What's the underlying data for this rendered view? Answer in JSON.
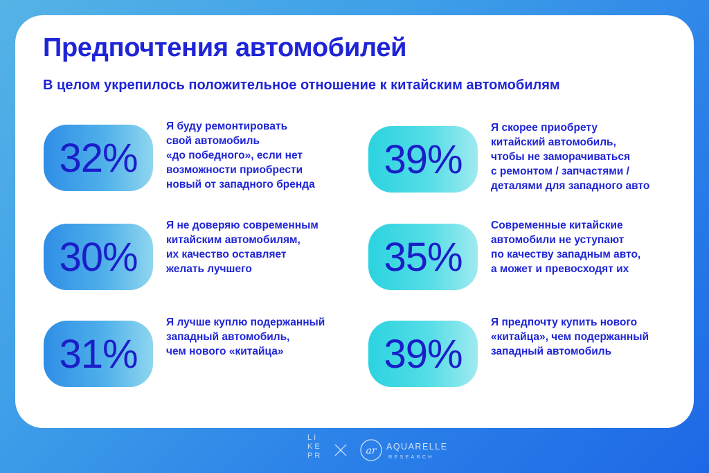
{
  "title": "Предпочтения автомобилей",
  "subtitle": "В целом укрепилось положительное отношение к китайским автомобилям",
  "stats": [
    {
      "value": "32%",
      "text": "Я буду ремонтировать\nсвой автомобиль\n«до победного», если нет\nвозможности приобрести\nновый от западного бренда"
    },
    {
      "value": "30%",
      "text": "Я не доверяю современным\nкитайским автомобилям,\nих качество оставляет\nжелать лучшего"
    },
    {
      "value": "31%",
      "text": "Я лучше куплю подержанный\nзападный автомобиль,\nчем нового «китайца»"
    },
    {
      "value": "39%",
      "text": "Я скорее приобрету\nкитайский автомобиль,\nчтобы не заморачиваться\nс ремонтом / запчастями /\nдеталями для западного авто"
    },
    {
      "value": "35%",
      "text": "Современные китайские\nавтомобили не уступают\nпо качеству западным авто,\nа может и превосходят их"
    },
    {
      "value": "39%",
      "text": "Я предпочту купить нового\n«китайца», чем подержанный\nзападный автомобиль"
    }
  ],
  "footer": {
    "likepr": "LI\nKE\nPR",
    "partner_name": "AQUARELLE",
    "partner_sub": "RESEARCH",
    "partner_logo_text": "ar"
  },
  "colors": {
    "accent": "#1f25d6",
    "pill_blue": "#2f8ee6",
    "pill_cyan": "#2bd3e0",
    "background": "#3f9fe8"
  }
}
